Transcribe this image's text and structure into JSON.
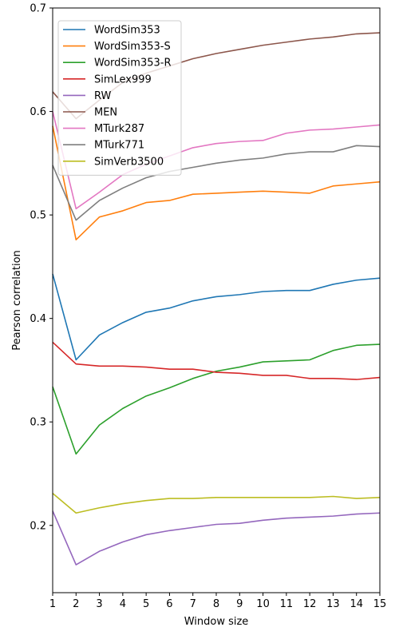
{
  "chart_data": {
    "type": "line",
    "title": "",
    "xlabel": "Window size",
    "ylabel": "Pearson correlation",
    "xlim": [
      1,
      15
    ],
    "ylim": [
      0.135,
      0.7
    ],
    "x": [
      1,
      2,
      3,
      4,
      5,
      6,
      7,
      8,
      9,
      10,
      11,
      12,
      13,
      14,
      15
    ],
    "x_ticks": [
      "1",
      "2",
      "3",
      "4",
      "5",
      "6",
      "7",
      "8",
      "9",
      "10",
      "11",
      "12",
      "13",
      "14",
      "15"
    ],
    "y_ticks": [
      0.2,
      0.3,
      0.4,
      0.5,
      0.6,
      0.7
    ],
    "y_tick_labels": [
      "0.2",
      "0.3",
      "0.4",
      "0.5",
      "0.6",
      "0.7"
    ],
    "grid": false,
    "legend_position": "top-left",
    "series": [
      {
        "name": "WordSim353",
        "color": "#1f77b4",
        "values": [
          0.443,
          0.36,
          0.384,
          0.396,
          0.406,
          0.41,
          0.417,
          0.421,
          0.423,
          0.426,
          0.427,
          0.427,
          0.433,
          0.437,
          0.439
        ]
      },
      {
        "name": "WordSim353-S",
        "color": "#ff7f0e",
        "values": [
          0.586,
          0.476,
          0.498,
          0.504,
          0.512,
          0.514,
          0.52,
          0.521,
          0.522,
          0.523,
          0.522,
          0.521,
          0.528,
          0.53,
          0.532
        ]
      },
      {
        "name": "WordSim353-R",
        "color": "#2ca02c",
        "values": [
          0.334,
          0.269,
          0.297,
          0.313,
          0.325,
          0.333,
          0.342,
          0.349,
          0.353,
          0.358,
          0.359,
          0.36,
          0.369,
          0.374,
          0.375
        ]
      },
      {
        "name": "SimLex999",
        "color": "#d62728",
        "values": [
          0.377,
          0.356,
          0.354,
          0.354,
          0.353,
          0.351,
          0.351,
          0.348,
          0.347,
          0.345,
          0.345,
          0.342,
          0.342,
          0.341,
          0.343
        ]
      },
      {
        "name": "RW",
        "color": "#9467bd",
        "values": [
          0.214,
          0.162,
          0.175,
          0.184,
          0.191,
          0.195,
          0.198,
          0.201,
          0.202,
          0.205,
          0.207,
          0.208,
          0.209,
          0.211,
          0.212
        ]
      },
      {
        "name": "MEN",
        "color": "#8c564b",
        "values": [
          0.619,
          0.593,
          0.611,
          0.628,
          0.637,
          0.644,
          0.651,
          0.656,
          0.66,
          0.664,
          0.667,
          0.67,
          0.672,
          0.675,
          0.676
        ]
      },
      {
        "name": "MTurk287",
        "color": "#e377c2",
        "values": [
          0.6,
          0.506,
          0.522,
          0.539,
          0.549,
          0.557,
          0.565,
          0.569,
          0.571,
          0.572,
          0.579,
          0.582,
          0.583,
          0.585,
          0.587
        ]
      },
      {
        "name": "MTurk771",
        "color": "#7f7f7f",
        "values": [
          0.548,
          0.495,
          0.514,
          0.526,
          0.536,
          0.542,
          0.546,
          0.55,
          0.553,
          0.555,
          0.559,
          0.561,
          0.561,
          0.567,
          0.566
        ]
      },
      {
        "name": "SimVerb3500",
        "color": "#bcbd22",
        "values": [
          0.231,
          0.212,
          0.217,
          0.221,
          0.224,
          0.226,
          0.226,
          0.227,
          0.227,
          0.227,
          0.227,
          0.227,
          0.228,
          0.226,
          0.227
        ]
      }
    ]
  }
}
